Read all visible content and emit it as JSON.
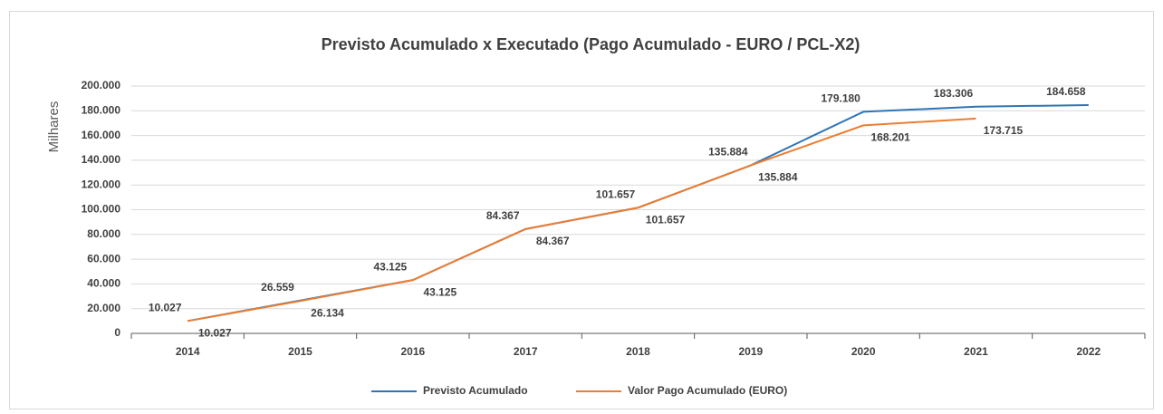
{
  "chart_data": {
    "type": "line",
    "title": "Previsto Acumulado x Executado (Pago Acumulado - EURO / PCL-X2)",
    "y_axis_label": "Milhares",
    "categories": [
      "2014",
      "2015",
      "2016",
      "2017",
      "2018",
      "2019",
      "2020",
      "2021",
      "2022"
    ],
    "series": [
      {
        "name": "Previsto Acumulado",
        "color": "#2e75b6",
        "values": [
          10027,
          26559,
          43125,
          84367,
          101657,
          135884,
          179180,
          183306,
          184658
        ],
        "value_labels": [
          "10.027",
          "26.559",
          "43.125",
          "84.367",
          "101.657",
          "135.884",
          "179.180",
          "183.306",
          "184.658"
        ]
      },
      {
        "name": "Valor Pago Acumulado (EURO)",
        "color": "#ed7d31",
        "values": [
          10027,
          26134,
          43125,
          84367,
          101657,
          135884,
          168201,
          173715,
          null
        ],
        "value_labels": [
          "10.027",
          "26.134",
          "43.125",
          "84.367",
          "101.657",
          "135.884",
          "168.201",
          "173.715",
          null
        ]
      }
    ],
    "ylim": [
      0,
      200000
    ],
    "yticks": [
      0,
      {
        "value": 20000,
        "label": "20.000"
      },
      {
        "value": 40000,
        "label": "40.000"
      },
      {
        "value": 60000,
        "label": "60.000"
      },
      {
        "value": 80000,
        "label": "80.000"
      },
      {
        "value": 100000,
        "label": "100.000"
      },
      {
        "value": 120000,
        "label": "120.000"
      },
      {
        "value": 140000,
        "label": "140.000"
      },
      {
        "value": 160000,
        "label": "160.000"
      },
      {
        "value": 180000,
        "label": "180.000"
      },
      {
        "value": 200000,
        "label": "200.000"
      }
    ],
    "grid": true,
    "legend": "bottom"
  }
}
